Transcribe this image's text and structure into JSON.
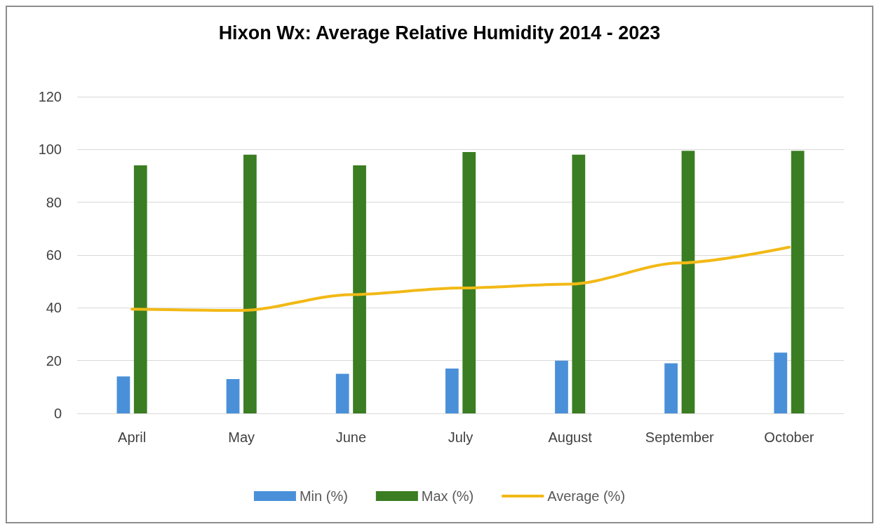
{
  "chart_data": {
    "type": "bar",
    "title": "Hixon Wx: Average Relative Humidity 2014 - 2023",
    "categories": [
      "April",
      "May",
      "June",
      "July",
      "August",
      "September",
      "October"
    ],
    "series": [
      {
        "name": "Min (%)",
        "color": "#4a90d9",
        "values": [
          14,
          13,
          15,
          17,
          20,
          19,
          23
        ]
      },
      {
        "name": "Max (%)",
        "color": "#3a7d22",
        "values": [
          94,
          98,
          94,
          99,
          98,
          99.5,
          99.5
        ]
      },
      {
        "name": "Average (%)",
        "type": "line",
        "color": "#f2b916",
        "values": [
          39.5,
          39,
          45,
          47.5,
          49,
          57,
          63
        ]
      }
    ],
    "ylim": [
      0,
      120
    ],
    "yticks": [
      0,
      20,
      40,
      60,
      80,
      100,
      120
    ],
    "grid": "y",
    "legend": "bottom",
    "marker": "none"
  }
}
